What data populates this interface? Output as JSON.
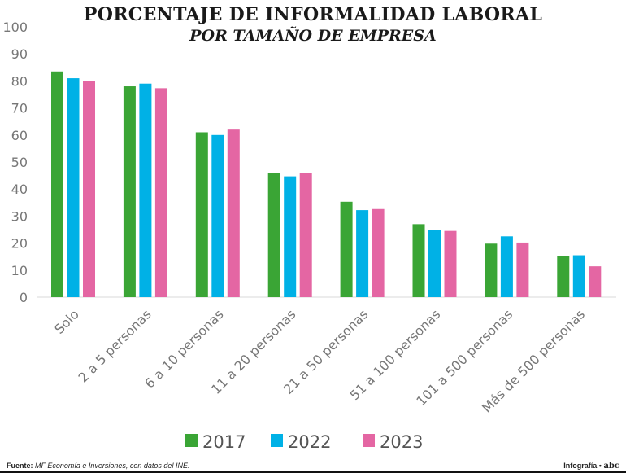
{
  "chart_data": {
    "type": "bar",
    "title": "PORCENTAJE DE INFORMALIDAD LABORAL",
    "subtitle": "POR TAMAÑO DE EMPRESA",
    "categories": [
      "Solo",
      "2 a 5 personas",
      "6 a 10 personas",
      "11 a 20 personas",
      "21 a 50 personas",
      "51 a 100 personas",
      "101 a 500 personas",
      "Más de 500 personas"
    ],
    "series": [
      {
        "name": "2017",
        "color": "#3aa535",
        "values": [
          83.5,
          78,
          61,
          46,
          35.3,
          27,
          19.8,
          15.3
        ]
      },
      {
        "name": "2022",
        "color": "#00b1e6",
        "values": [
          81,
          79,
          60,
          44.7,
          32.2,
          25,
          22.5,
          15.5
        ]
      },
      {
        "name": "2023",
        "color": "#e466a3",
        "values": [
          80,
          77.3,
          62,
          45.8,
          32.6,
          24.5,
          20.2,
          11.4
        ]
      }
    ],
    "ylim": [
      0,
      100
    ],
    "yticks": [
      0,
      10,
      20,
      30,
      40,
      50,
      60,
      70,
      80,
      90,
      100
    ],
    "xlabel": "",
    "ylabel": "",
    "grid": false,
    "legend_position": "bottom-center"
  },
  "footer": {
    "source_label": "Fuente:",
    "source_text": "MF Economía e Inversiones, con datos del INE.",
    "credit": "Infografía •",
    "logo": "abc"
  }
}
